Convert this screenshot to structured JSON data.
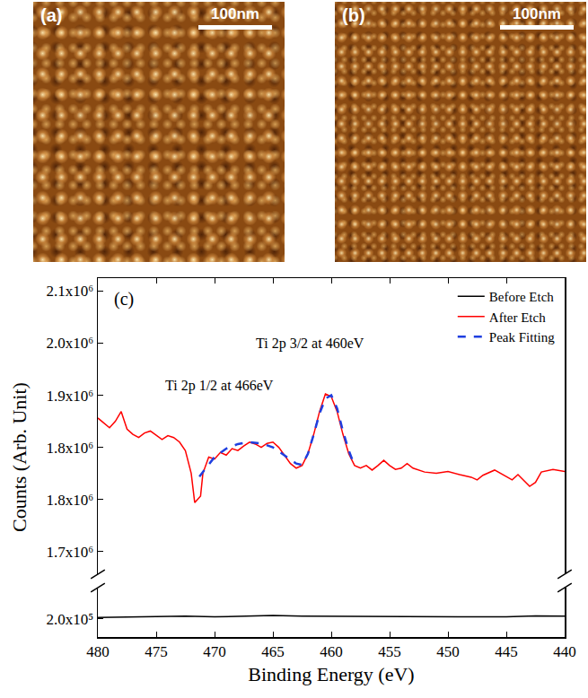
{
  "images": [
    {
      "label": "(a)",
      "scale_bar": "100nm"
    },
    {
      "label": "(b)",
      "scale_bar": "100nm"
    }
  ],
  "chart_data": {
    "type": "line",
    "panel_label": "(c)",
    "x_label": "Binding Energy (eV)",
    "y_label": "Counts (Arb. Unit)",
    "xlim": [
      480,
      440
    ],
    "xticks": [
      480,
      475,
      470,
      465,
      460,
      455,
      450,
      445,
      440
    ],
    "ylim": [
      1645000,
      2100000
    ],
    "yticks": [
      {
        "value": 1680000,
        "label": "1.7x10⁶"
      },
      {
        "value": 1760000,
        "label": "1.8x10⁶"
      },
      {
        "value": 1840000,
        "label": "1.8x10⁶"
      },
      {
        "value": 1920000,
        "label": "1.9x10⁶"
      },
      {
        "value": 2000000,
        "label": "2.0x10⁶"
      },
      {
        "value": 2080000,
        "label": "2.1x10⁶"
      }
    ],
    "y2lim": [
      172000,
      248000
    ],
    "y2ticks": [
      {
        "value": 200000,
        "label": "2.0x10⁵"
      }
    ],
    "legend": "upper right",
    "grid": false,
    "series": [
      {
        "name": "Before Etch",
        "color": "#000000",
        "line_style": "solid",
        "axis": "y2",
        "x": [
          480,
          477.5,
          475,
          472.5,
          470,
          467.5,
          465,
          462.5,
          460,
          457.5,
          455,
          452.5,
          450,
          447.5,
          445,
          442.5,
          440
        ],
        "values": [
          202000,
          203000,
          203500,
          204000,
          203000,
          204500,
          205000,
          204000,
          204000,
          203000,
          204000,
          203500,
          203000,
          204000,
          203000,
          204500,
          204000
        ]
      },
      {
        "name": "After Etch",
        "color": "#ff0000",
        "line_style": "solid",
        "x": [
          480,
          479.5,
          479,
          478.5,
          478,
          477.5,
          477,
          476.5,
          476,
          475.5,
          475,
          474.5,
          474,
          473.5,
          473,
          472.5,
          472,
          471.7,
          471.2,
          471,
          470.5,
          470,
          469.5,
          469,
          468.5,
          468,
          467.5,
          467,
          466.5,
          466,
          465.5,
          465,
          464.5,
          464,
          463.5,
          463,
          462.5,
          462,
          461.5,
          461,
          460.5,
          460,
          459.5,
          459,
          458.5,
          458,
          457.5,
          457,
          456.5,
          456,
          455.5,
          455,
          454.5,
          454,
          453.5,
          453,
          452,
          451,
          450,
          449,
          448,
          447.5,
          447,
          446,
          445,
          444.5,
          444,
          443,
          442.5,
          442,
          441,
          440
        ],
        "values": [
          1885000,
          1878000,
          1870000,
          1880000,
          1895000,
          1868000,
          1860000,
          1855000,
          1862000,
          1865000,
          1858000,
          1852000,
          1858000,
          1855000,
          1848000,
          1835000,
          1800000,
          1755000,
          1765000,
          1800000,
          1825000,
          1822000,
          1832000,
          1828000,
          1838000,
          1835000,
          1842000,
          1848000,
          1845000,
          1840000,
          1846000,
          1848000,
          1840000,
          1828000,
          1815000,
          1808000,
          1812000,
          1830000,
          1860000,
          1895000,
          1922000,
          1918000,
          1895000,
          1860000,
          1830000,
          1812000,
          1808000,
          1812000,
          1805000,
          1812000,
          1820000,
          1812000,
          1806000,
          1808000,
          1815000,
          1808000,
          1802000,
          1800000,
          1803000,
          1798000,
          1794000,
          1790000,
          1797000,
          1805000,
          1795000,
          1790000,
          1798000,
          1780000,
          1786000,
          1802000,
          1806000,
          1803000
        ]
      },
      {
        "name": "Peak Fitting",
        "color": "#1f3fe0",
        "line_style": "dash",
        "x": [
          471.3,
          470,
          469,
          468,
          467,
          466,
          465,
          464,
          463,
          462.5,
          462,
          461.5,
          461,
          460.5,
          460,
          459.5,
          459,
          458.5,
          458
        ],
        "values": [
          1795000,
          1825000,
          1838000,
          1845000,
          1848000,
          1846000,
          1840000,
          1828000,
          1815000,
          1813000,
          1830000,
          1860000,
          1892000,
          1915000,
          1920000,
          1900000,
          1865000,
          1835000,
          1812000
        ]
      }
    ],
    "annotations": [
      {
        "text": "Ti 2p 3/2 at 460eV",
        "x": 461.8,
        "y": 2000000
      },
      {
        "text": "Ti 2p 1/2 at 466eV",
        "x": 469.6,
        "y": 1935000
      }
    ]
  }
}
